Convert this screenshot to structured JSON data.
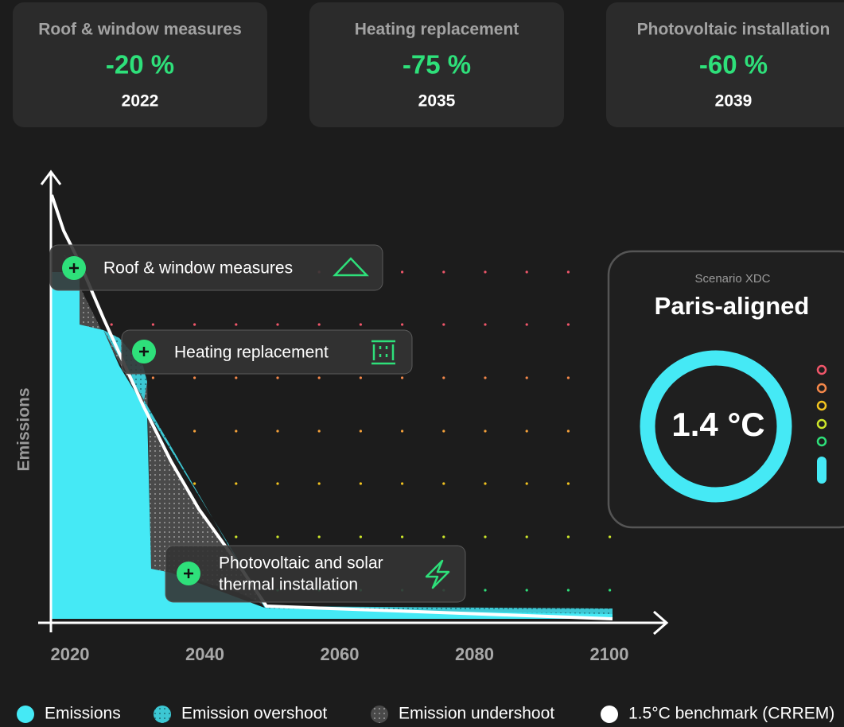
{
  "cards": [
    {
      "title": "Roof & window measures",
      "value": "-20 %",
      "year": "2022"
    },
    {
      "title": "Heating replacement",
      "value": "-75 %",
      "year": "2035"
    },
    {
      "title": "Photovoltaic installation",
      "value": "-60 %",
      "year": "2039"
    }
  ],
  "chart": {
    "y_label": "Emissions",
    "x_ticks": [
      2020,
      2040,
      2060,
      2080,
      2100
    ],
    "annotations": [
      {
        "lines": [
          "Roof & window measures"
        ]
      },
      {
        "lines": [
          "Heating replacement"
        ]
      },
      {
        "lines": [
          "Photovoltaic and solar",
          "thermal installation"
        ]
      }
    ]
  },
  "scenario": {
    "label": "Scenario XDC",
    "status": "Paris-aligned",
    "temperature": "1.4 °C"
  },
  "legend": [
    "Emissions",
    "Emission overshoot",
    "Emission undershoot",
    "1.5°C benchmark (CRREM)"
  ]
}
